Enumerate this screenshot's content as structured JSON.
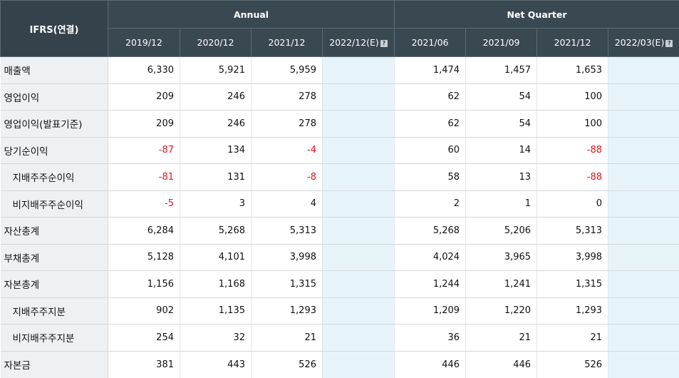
{
  "header": {
    "corner_label": "IFRS(연결)",
    "annual_label": "Annual",
    "quarter_label": "Net Quarter",
    "help_glyph": "?",
    "annual_periods": [
      "2019/12",
      "2020/12",
      "2021/12",
      "2022/12(E)"
    ],
    "quarter_periods": [
      "2021/06",
      "2021/09",
      "2021/12",
      "2022/03(E)"
    ]
  },
  "rows": [
    {
      "label": "매출액",
      "sub": false,
      "annual": [
        "6,330",
        "5,921",
        "5,959",
        ""
      ],
      "quarter": [
        "1,474",
        "1,457",
        "1,653",
        ""
      ]
    },
    {
      "label": "영업이익",
      "sub": false,
      "annual": [
        "209",
        "246",
        "278",
        ""
      ],
      "quarter": [
        "62",
        "54",
        "100",
        ""
      ]
    },
    {
      "label": "영업이익(발표기준)",
      "sub": false,
      "annual": [
        "209",
        "246",
        "278",
        ""
      ],
      "quarter": [
        "62",
        "54",
        "100",
        ""
      ]
    },
    {
      "label": "당기순이익",
      "sub": false,
      "annual": [
        "-87",
        "134",
        "-4",
        ""
      ],
      "quarter": [
        "60",
        "14",
        "-88",
        ""
      ]
    },
    {
      "label": "지배주주순이익",
      "sub": true,
      "annual": [
        "-81",
        "131",
        "-8",
        ""
      ],
      "quarter": [
        "58",
        "13",
        "-88",
        ""
      ]
    },
    {
      "label": "비지배주주순이익",
      "sub": true,
      "annual": [
        "-5",
        "3",
        "4",
        ""
      ],
      "quarter": [
        "2",
        "1",
        "0",
        ""
      ]
    },
    {
      "label": "자산총계",
      "sub": false,
      "annual": [
        "6,284",
        "5,268",
        "5,313",
        ""
      ],
      "quarter": [
        "5,268",
        "5,206",
        "5,313",
        ""
      ]
    },
    {
      "label": "부채총계",
      "sub": false,
      "annual": [
        "5,128",
        "4,101",
        "3,998",
        ""
      ],
      "quarter": [
        "4,024",
        "3,965",
        "3,998",
        ""
      ]
    },
    {
      "label": "자본총계",
      "sub": false,
      "annual": [
        "1,156",
        "1,168",
        "1,315",
        ""
      ],
      "quarter": [
        "1,244",
        "1,241",
        "1,315",
        ""
      ]
    },
    {
      "label": "지배주주지분",
      "sub": true,
      "annual": [
        "902",
        "1,135",
        "1,293",
        ""
      ],
      "quarter": [
        "1,209",
        "1,220",
        "1,293",
        ""
      ]
    },
    {
      "label": "비지배주주지분",
      "sub": true,
      "annual": [
        "254",
        "32",
        "21",
        ""
      ],
      "quarter": [
        "36",
        "21",
        "21",
        ""
      ]
    },
    {
      "label": "자본금",
      "sub": false,
      "annual": [
        "381",
        "443",
        "526",
        ""
      ],
      "quarter": [
        "446",
        "446",
        "526",
        ""
      ]
    }
  ],
  "colors": {
    "header_bg": "#3a4852",
    "label_bg": "#edf1f4",
    "estimate_bg": "#e6f4fa",
    "negative": "#e0161f"
  }
}
